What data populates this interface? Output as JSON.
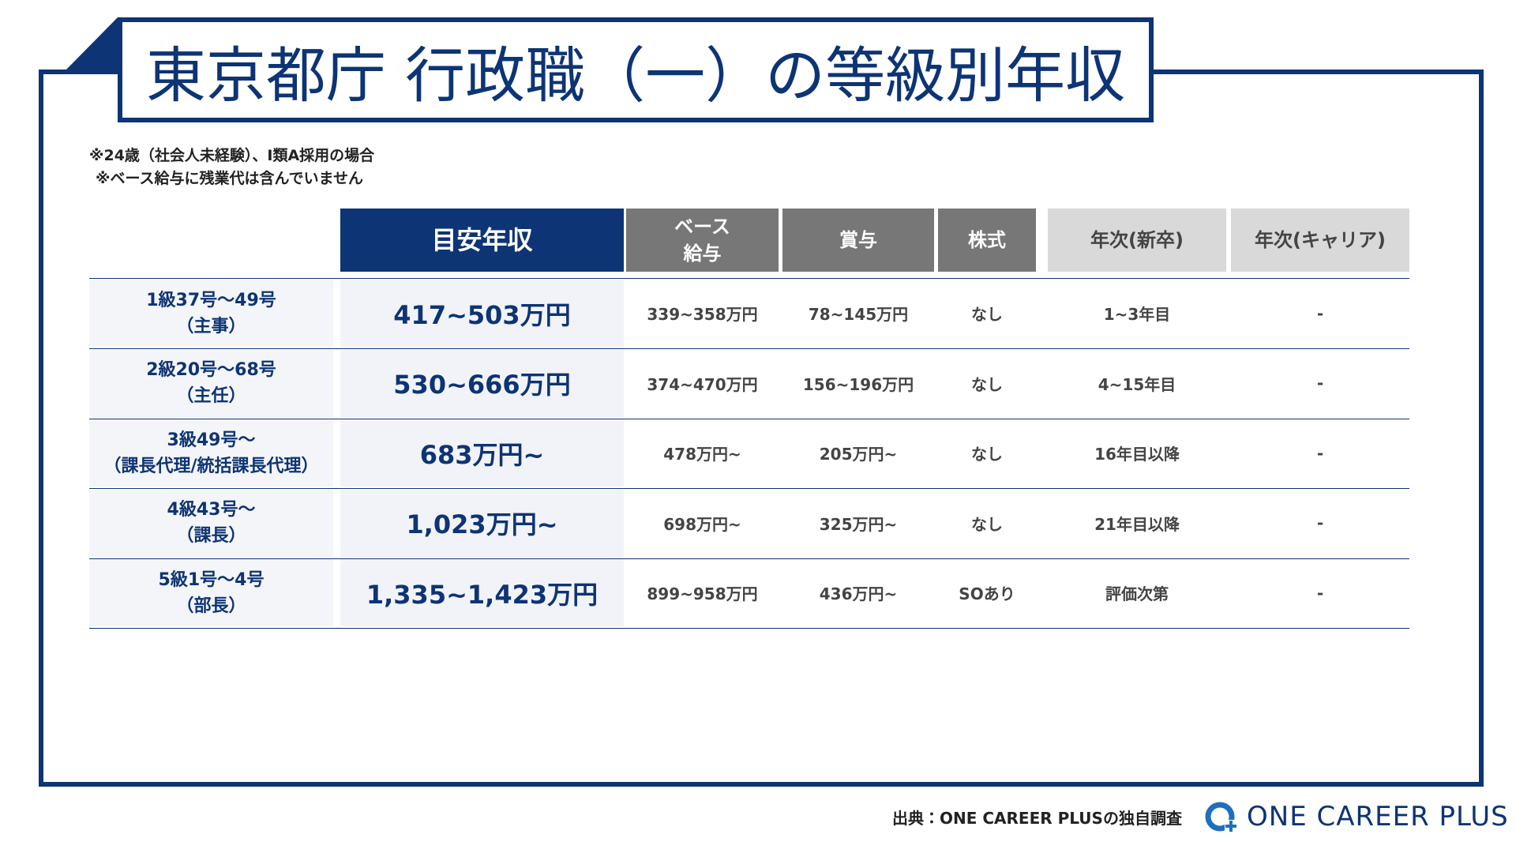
{
  "header": {
    "title": "東京都庁 行政職（一）の等級別年収"
  },
  "notes": [
    "※24歳（社会人未経験）、I類A採用の場合",
    "※ベース給与に残業代は含んでいません"
  ],
  "table": {
    "columns": [
      "",
      "目安年収",
      "ベース\n給与",
      "賞与",
      "株式",
      "年次(新卒)",
      "年次(キャリア)"
    ],
    "rows": [
      [
        "1級37号〜49号\n（主事）",
        "417~503万円",
        "339~358万円",
        "78~145万円",
        "なし",
        "1~3年目",
        "-"
      ],
      [
        "2級20号〜68号\n（主任）",
        "530~666万円",
        "374~470万円",
        "156~196万円",
        "なし",
        "4~15年目",
        "-"
      ],
      [
        "3級49号〜\n（課長代理/統括課長代理）",
        "683万円~",
        "478万円~",
        "205万円~",
        "なし",
        "16年目以降",
        "-"
      ],
      [
        "4級43号〜\n（課長）",
        "1,023万円~",
        "698万円~",
        "325万円~",
        "なし",
        "21年目以降",
        "-"
      ],
      [
        "5級1号〜4号\n（部長）",
        "1,335~1,423万円",
        "899~958万円",
        "436万円~",
        "SOあり",
        "評価次第",
        "-"
      ]
    ]
  },
  "footer": {
    "source": "出典：ONE CAREER PLUSの独自調査",
    "logo": "ONE CAREER PLUS"
  }
}
